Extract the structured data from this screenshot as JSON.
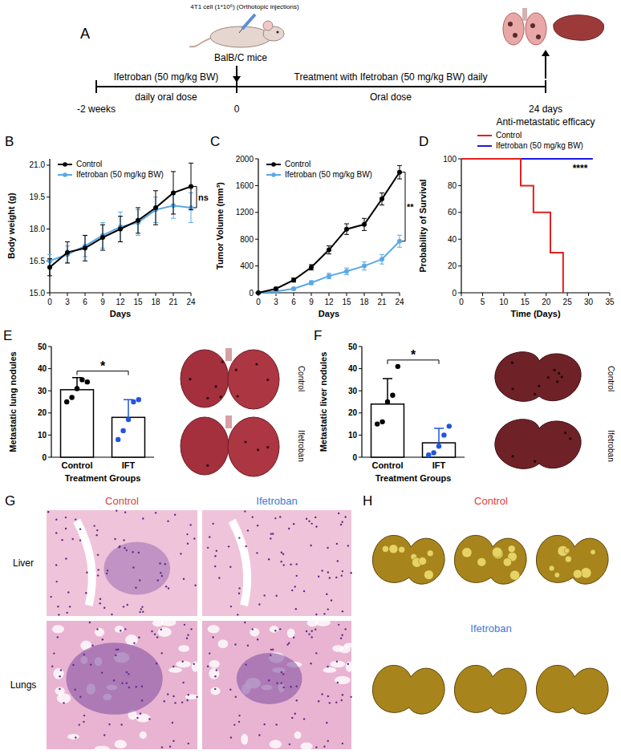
{
  "schematic": {
    "panel_label": "A",
    "injection_label": "4T1 cell (1*10⁶) (Orthotopic injections)",
    "mouse_label": "BalB/C mice",
    "pre_treatment": "Ifetroban (50 mg/kg BW)",
    "pre_treatment_detail": "daily oral dose",
    "treatment": "Treatment with Ifetroban (50 mg/kg BW) daily",
    "treatment_detail": "Oral dose",
    "timepoints": [
      "-2 weeks",
      "0",
      "24 days"
    ],
    "endpoint": "Anti-metastatic efficacy"
  },
  "chart_data": [
    {
      "panel_label": "B",
      "type": "line",
      "x_label": "Days",
      "y_label": "Body weight (g)",
      "x": [
        0,
        3,
        6,
        9,
        12,
        15,
        18,
        21,
        24
      ],
      "xlim": [
        0,
        24
      ],
      "xticks": [
        0,
        3,
        6,
        9,
        12,
        15,
        18,
        21,
        24
      ],
      "ylim": [
        15,
        21.3
      ],
      "yticks": [
        {
          "value": 15,
          "label": "15.0"
        },
        16.5,
        {
          "value": 18,
          "label": "18.0"
        },
        19.5,
        {
          "value": 21,
          "label": "21.0"
        }
      ],
      "legend": "upper left",
      "annotation": "ns",
      "series": [
        {
          "name": "Control",
          "color": "#000000",
          "marker": "circle",
          "values": [
            16.2,
            16.9,
            17.1,
            17.6,
            18.0,
            18.4,
            19.0,
            19.7,
            20.0
          ],
          "errors": [
            0.4,
            0.5,
            0.6,
            0.6,
            0.6,
            0.6,
            0.8,
            1.0,
            1.1
          ]
        },
        {
          "name": "Ifetroban (50 mg/kg BW)",
          "color": "#5aa9e6",
          "marker": "circle",
          "values": [
            16.5,
            16.8,
            17.2,
            17.7,
            18.1,
            18.3,
            18.9,
            19.1,
            19.0
          ],
          "errors": [
            0.3,
            0.4,
            0.5,
            0.6,
            0.7,
            0.6,
            0.6,
            0.6,
            0.7
          ]
        }
      ]
    },
    {
      "panel_label": "C",
      "type": "line",
      "x_label": "Days",
      "y_label": "Tumor Volume (mm³)",
      "x": [
        0,
        3,
        6,
        9,
        12,
        15,
        18,
        21,
        24
      ],
      "xlim": [
        0,
        24
      ],
      "xticks": [
        0,
        3,
        6,
        9,
        12,
        15,
        18,
        21,
        24
      ],
      "ylim": [
        0,
        2000
      ],
      "yticks": [
        0,
        400,
        800,
        1200,
        1600,
        2000
      ],
      "legend": "upper left",
      "annotation": "**",
      "series": [
        {
          "name": "Control",
          "color": "#000000",
          "marker": "circle",
          "values": [
            0,
            60,
            190,
            380,
            640,
            950,
            1020,
            1400,
            1800
          ],
          "errors": [
            0,
            20,
            30,
            40,
            60,
            80,
            90,
            90,
            100
          ]
        },
        {
          "name": "Ifetroban (50 mg/kg BW)",
          "color": "#5aa9e6",
          "marker": "circle",
          "values": [
            0,
            20,
            60,
            150,
            250,
            320,
            400,
            500,
            770
          ],
          "errors": [
            0,
            10,
            20,
            30,
            40,
            50,
            60,
            70,
            90
          ]
        }
      ]
    },
    {
      "panel_label": "D",
      "type": "step",
      "x_label": "Time (Days)",
      "y_label": "Probability of Survival",
      "xlim": [
        0,
        35
      ],
      "xticks": [
        0,
        5,
        10,
        15,
        20,
        25,
        30,
        35
      ],
      "ylim": [
        0,
        100
      ],
      "yticks": [
        0,
        20,
        40,
        60,
        80,
        100
      ],
      "legend": "top",
      "annotation": "****",
      "series": [
        {
          "name": "Control",
          "color": "#e02020",
          "x": [
            0,
            14,
            17,
            21,
            24
          ],
          "values": [
            100,
            80,
            60,
            30,
            0
          ]
        },
        {
          "name": "Ifetroban (50 mg/kg BW)",
          "color": "#1a1ae0",
          "x": [
            0,
            31
          ],
          "values": [
            100,
            100
          ]
        }
      ]
    },
    {
      "panel_label": "E",
      "type": "bar",
      "x_label": "Treatment Groups",
      "y_label": "Metastatic lung nodules",
      "categories": [
        "Control",
        "IFT"
      ],
      "values": [
        30.5,
        18
      ],
      "errors": [
        5.5,
        8
      ],
      "points": [
        [
          25,
          27,
          31,
          35,
          34
        ],
        [
          8,
          12,
          17,
          25,
          26
        ]
      ],
      "colors": [
        "#000000",
        "#2255dd"
      ],
      "ylim": [
        0,
        50
      ],
      "yticks": [
        0,
        10,
        20,
        30,
        40,
        50
      ],
      "annotation": "*"
    },
    {
      "panel_label": "F",
      "type": "bar",
      "x_label": "Treatment Groups",
      "y_label": "Metastatic liver nodules",
      "categories": [
        "Control",
        "IFT"
      ],
      "values": [
        24,
        6.5
      ],
      "errors": [
        11.5,
        6.5
      ],
      "points": [
        [
          15,
          16,
          25,
          28,
          41
        ],
        [
          1,
          2,
          5,
          10,
          14
        ]
      ],
      "colors": [
        "#000000",
        "#2255dd"
      ],
      "ylim": [
        0,
        50
      ],
      "yticks": [
        0,
        10,
        20,
        30,
        40,
        50
      ],
      "annotation": "*"
    }
  ],
  "photos": {
    "lungs": [
      "Control",
      "Ifetroban"
    ],
    "livers": [
      "Control",
      "Ifetroban"
    ]
  },
  "histology": {
    "panel_label": "G",
    "columns": [
      "Control",
      "Ifetroban"
    ],
    "rows": [
      "Liver",
      "Lungs"
    ]
  },
  "gross_liver": {
    "panel_label": "H",
    "rows": [
      "Control",
      "Ifetroban"
    ]
  }
}
